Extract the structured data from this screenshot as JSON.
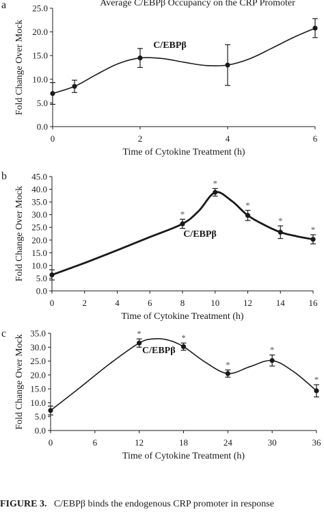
{
  "chart_data": [
    {
      "panel": "a",
      "type": "line",
      "title": "Average C/EBPβ Occupancy on the CRP Promoter",
      "xlabel": "Time of Cytokine Treatment (h)",
      "ylabel": "Fold Change Over Mock",
      "xlim": [
        0,
        6
      ],
      "ylim": [
        0,
        25
      ],
      "xticks": [
        0,
        2,
        4,
        6
      ],
      "xtick_labels": [
        "0",
        "2",
        "4",
        "6"
      ],
      "yticks": [
        0,
        5,
        10,
        15,
        20,
        25
      ],
      "ytick_labels": [
        "0.0",
        "5.0",
        "10.0",
        "15.0",
        "20.0",
        "25.0"
      ],
      "grid": false,
      "series": [
        {
          "name": "C/EBPβ",
          "x": [
            0,
            0.5,
            2,
            4,
            6
          ],
          "y": [
            7.0,
            8.5,
            14.5,
            13.0,
            20.8
          ],
          "err": [
            2.3,
            1.3,
            2.0,
            4.3,
            2.0
          ],
          "significant": [
            false,
            false,
            false,
            false,
            false
          ]
        }
      ],
      "curve": [
        [
          0,
          7.0
        ],
        [
          0.5,
          8.5
        ],
        [
          1.0,
          11.0
        ],
        [
          1.5,
          13.3
        ],
        [
          2,
          14.5
        ],
        [
          2.5,
          14.4
        ],
        [
          3,
          13.6
        ],
        [
          3.5,
          12.9
        ],
        [
          4,
          13.0
        ],
        [
          4.5,
          14.3
        ],
        [
          5,
          16.5
        ],
        [
          5.5,
          18.8
        ],
        [
          6,
          20.8
        ]
      ]
    },
    {
      "panel": "b",
      "type": "line",
      "title": "",
      "xlabel": "Time of Cytokine Treatment (h)",
      "ylabel": "Fold Change Over Mock",
      "xlim": [
        0,
        16
      ],
      "ylim": [
        0,
        45
      ],
      "xticks": [
        0,
        2,
        4,
        6,
        8,
        10,
        12,
        14,
        16
      ],
      "xtick_labels": [
        "0",
        "2",
        "4",
        "6",
        "8",
        "10",
        "12",
        "14",
        "16"
      ],
      "yticks": [
        0,
        5,
        10,
        15,
        20,
        25,
        30,
        35,
        40,
        45
      ],
      "ytick_labels": [
        "0.0",
        "5.0",
        "10.0",
        "15.0",
        "20.0",
        "25.0",
        "30.0",
        "35.0",
        "40.0",
        "45.0"
      ],
      "grid": false,
      "series": [
        {
          "name": "C/EBPβ",
          "x": [
            0,
            8,
            10,
            12,
            14,
            16
          ],
          "y": [
            6.3,
            26.4,
            38.8,
            29.7,
            23.1,
            20.3
          ],
          "err": [
            2.0,
            1.8,
            1.5,
            2.0,
            2.5,
            1.8
          ],
          "significant": [
            false,
            true,
            true,
            true,
            true,
            true
          ]
        }
      ],
      "curve": [
        [
          0,
          6.3
        ],
        [
          2,
          11.0
        ],
        [
          4,
          16.0
        ],
        [
          6,
          21.2
        ],
        [
          8,
          26.4
        ],
        [
          9,
          31.5
        ],
        [
          10,
          38.8
        ],
        [
          11,
          35.5
        ],
        [
          12,
          29.7
        ],
        [
          13,
          26.0
        ],
        [
          14,
          23.1
        ],
        [
          15,
          21.5
        ],
        [
          16,
          20.3
        ]
      ]
    },
    {
      "panel": "c",
      "type": "line",
      "title": "",
      "xlabel": "Time of Cytokine Treatment (h)",
      "ylabel": "Fold Change Over Mock",
      "xlim": [
        0,
        36
      ],
      "ylim": [
        0,
        35
      ],
      "xticks": [
        0,
        6,
        12,
        18,
        24,
        30,
        36
      ],
      "xtick_labels": [
        "0",
        "6",
        "12",
        "18",
        "24",
        "30",
        "36"
      ],
      "yticks": [
        0,
        5,
        10,
        15,
        20,
        25,
        30,
        35
      ],
      "ytick_labels": [
        "0.0",
        "5.0",
        "10.0",
        "15.0",
        "20.0",
        "25.0",
        "30.0",
        "35.0"
      ],
      "grid": false,
      "series": [
        {
          "name": "C/EBPβ",
          "x": [
            0,
            12,
            18,
            24,
            30,
            36
          ],
          "y": [
            7.2,
            31.5,
            30.2,
            20.5,
            25.2,
            14.3
          ],
          "err": [
            1.6,
            1.5,
            1.3,
            1.3,
            2.0,
            2.2
          ],
          "significant": [
            false,
            true,
            true,
            true,
            true,
            true
          ]
        }
      ],
      "curve": [
        [
          0,
          7.2
        ],
        [
          4,
          15.5
        ],
        [
          8,
          24.0
        ],
        [
          12,
          31.5
        ],
        [
          14,
          33.0
        ],
        [
          16,
          32.5
        ],
        [
          18,
          30.2
        ],
        [
          21,
          24.5
        ],
        [
          24,
          20.5
        ],
        [
          27,
          23.0
        ],
        [
          30,
          25.2
        ],
        [
          33,
          21.0
        ],
        [
          36,
          14.3
        ]
      ]
    }
  ],
  "series_label": "C/EBPβ",
  "significance_marker": "*",
  "caption": {
    "lead": "FIGURE 3.",
    "text": "C/EBPβ binds the endogenous CRP promoter in response"
  }
}
